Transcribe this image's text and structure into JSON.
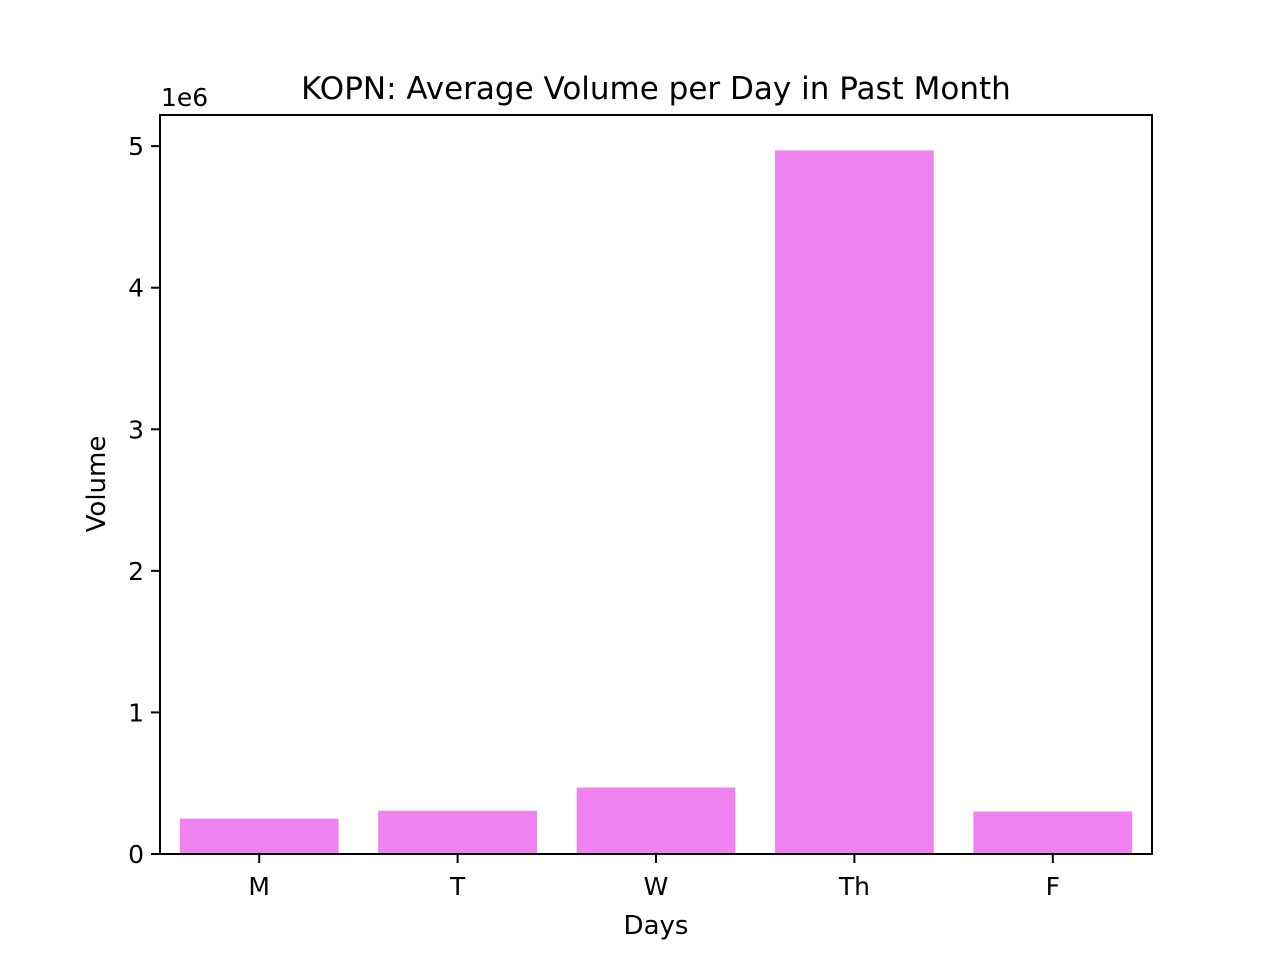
{
  "chart_data": {
    "type": "bar",
    "title": "KOPN: Average Volume per Day in Past Month",
    "xlabel": "Days",
    "ylabel": "Volume",
    "y_offset_label": "1e6",
    "categories": [
      "M",
      "T",
      "W",
      "Th",
      "F"
    ],
    "values": [
      250000,
      305000,
      470000,
      4970000,
      300000
    ],
    "ylim": [
      0,
      5220000
    ],
    "yticks": [
      0,
      1000000,
      2000000,
      3000000,
      4000000,
      5000000
    ],
    "ytick_labels": [
      "0",
      "1",
      "2",
      "3",
      "4",
      "5"
    ],
    "bar_color": "#ee82ee",
    "grid": false,
    "legend": "none"
  }
}
